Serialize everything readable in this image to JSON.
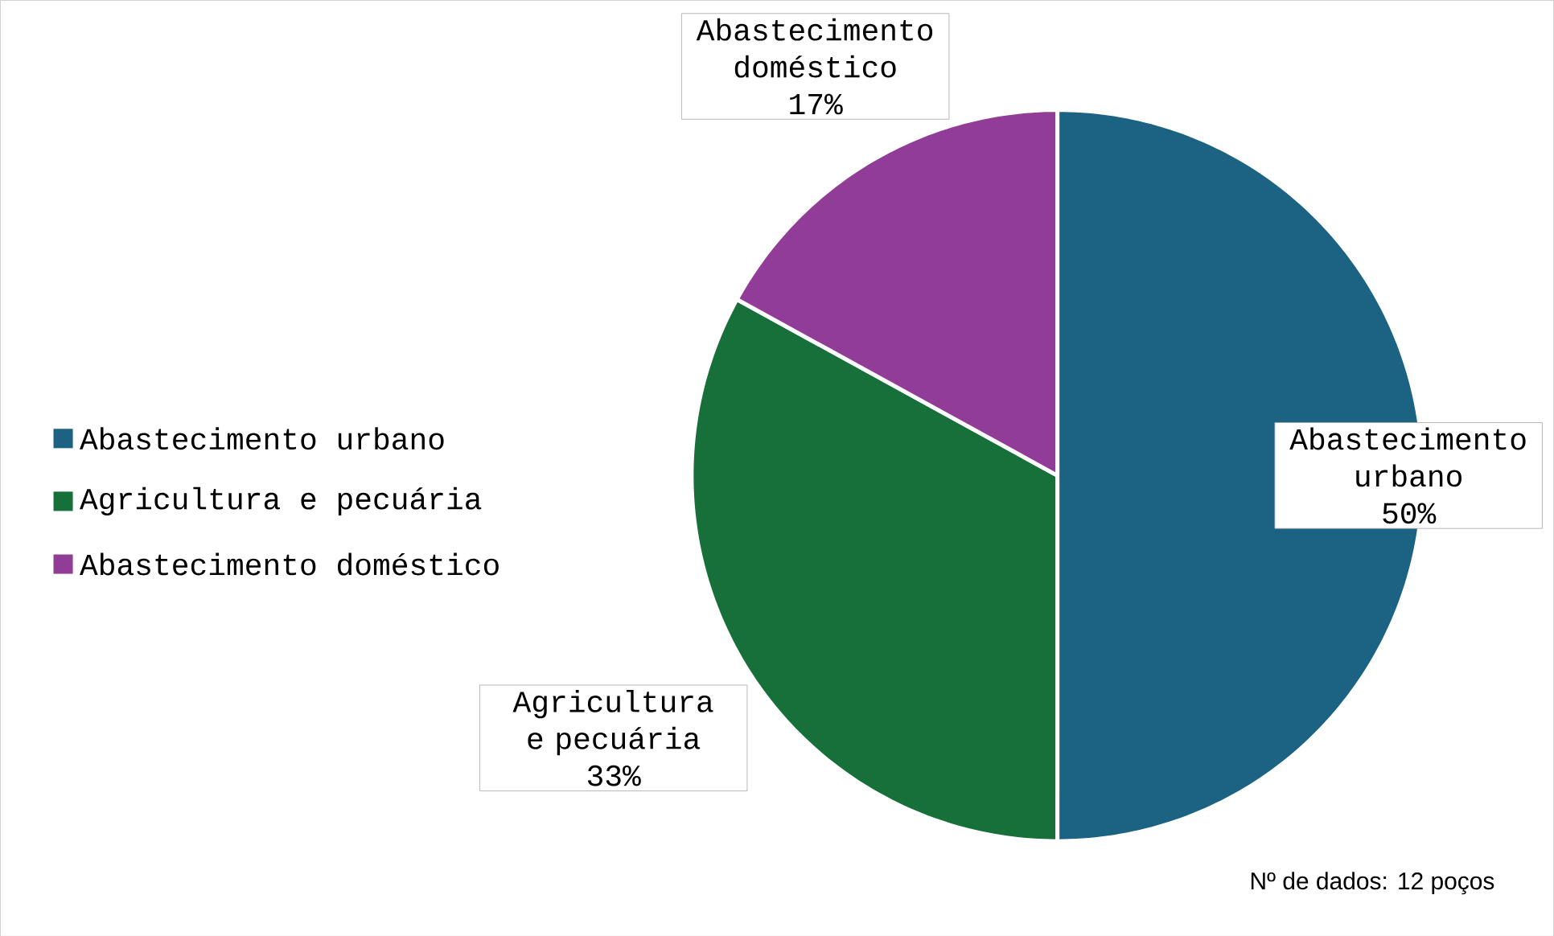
{
  "chart_data": {
    "type": "pie",
    "categories": [
      "Abastecimento urbano",
      "Agricultura e pecuária",
      "Abastecimento doméstico"
    ],
    "values": [
      50,
      33,
      17
    ],
    "value_labels": [
      "50%",
      "33%",
      "17%"
    ],
    "colors": [
      "#1b6283",
      "#17703a",
      "#913c96"
    ],
    "legend": "left",
    "annotations": [
      "Nº de dados: 12 poços"
    ]
  }
}
